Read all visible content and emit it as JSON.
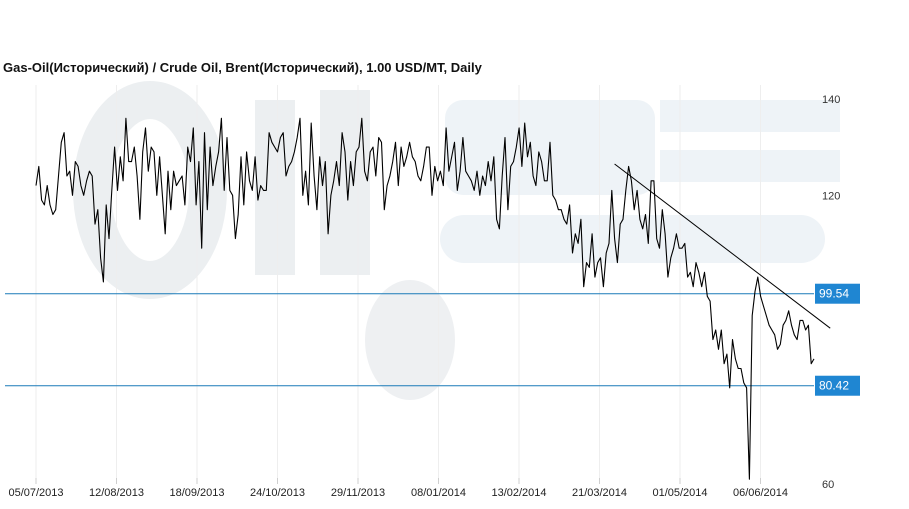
{
  "colors": {
    "series": "#000000",
    "trendline": "#000000",
    "level_line": "#1a7ab8",
    "level_badge": "#1f86d2",
    "grid": "#eeeeee",
    "watermark": "#e8ecef"
  },
  "chart_data": {
    "type": "line",
    "title": "Gas-Oil(Исторический) / Crude Oil, Brent(Исторический), 1.00 USD/MT, Daily",
    "xlabel": "",
    "ylabel": "",
    "ylim": [
      60,
      140
    ],
    "y_ticks": [
      "140",
      "120",
      "60"
    ],
    "x_ticks": [
      "05/07/2013",
      "12/08/2013",
      "18/09/2013",
      "24/10/2013",
      "29/11/2013",
      "08/01/2014",
      "13/02/2014",
      "21/03/2014",
      "01/05/2014",
      "06/06/2014"
    ],
    "grid": "vertical",
    "levels": [
      {
        "label": "99.54",
        "value": 99.54
      },
      {
        "label": "80.42",
        "value": 80.42
      }
    ],
    "trendline": {
      "from": {
        "index": 206,
        "value": 126.5
      },
      "to": {
        "index": 281,
        "value": 93
      }
    },
    "series": [
      {
        "values": [
          122,
          126,
          119,
          118,
          122,
          118,
          116,
          117,
          124,
          131,
          133,
          124,
          125,
          120,
          127,
          126,
          122,
          120,
          123,
          125,
          124,
          114,
          117,
          107,
          102,
          118,
          111,
          121,
          130,
          121,
          128,
          123,
          136,
          127,
          127,
          130,
          124,
          115,
          129,
          134,
          125,
          130,
          129,
          120,
          128,
          120,
          112,
          125,
          117,
          125,
          122,
          123,
          124,
          118,
          130,
          127,
          134,
          118,
          127,
          109,
          133,
          117,
          130,
          122,
          126,
          129,
          136,
          121,
          132,
          121,
          120,
          111,
          116,
          128,
          118,
          129,
          123,
          121,
          128,
          119,
          122,
          121,
          121,
          133,
          131,
          130,
          129,
          132,
          133,
          124,
          126,
          127,
          129,
          132,
          136,
          120,
          125,
          118,
          135,
          124,
          117,
          128,
          122,
          127,
          112,
          120,
          123,
          127,
          122,
          133,
          129,
          119,
          127,
          122,
          129,
          130,
          136,
          125,
          123,
          129,
          130,
          124,
          132,
          131,
          117,
          122,
          124,
          127,
          131,
          122,
          130,
          126,
          128,
          131,
          128,
          127,
          124,
          123,
          126,
          130,
          130,
          120,
          126,
          123,
          125,
          122,
          134,
          125,
          128,
          131,
          121,
          125,
          132,
          125,
          124,
          123,
          121,
          125,
          120,
          124,
          122,
          127,
          123,
          128,
          115,
          113,
          124,
          132,
          117,
          126,
          127,
          130,
          134,
          126,
          135,
          128,
          131,
          124,
          122,
          129,
          127,
          123,
          123,
          131,
          120,
          119,
          117,
          117,
          115,
          114,
          118,
          108,
          112,
          110,
          115,
          101,
          106,
          105,
          112,
          103,
          106,
          107,
          101,
          108,
          110,
          121,
          111,
          106,
          114,
          115,
          121,
          126,
          123,
          117,
          121,
          115,
          113,
          116,
          110,
          123,
          123,
          111,
          109,
          117,
          112,
          103,
          107,
          109,
          112,
          109,
          109,
          110,
          103,
          104,
          101,
          106,
          104,
          101,
          104,
          99,
          98,
          90,
          92,
          88,
          92,
          85,
          87,
          80,
          90,
          86,
          84,
          84,
          81,
          80,
          61,
          95,
          100,
          103,
          99,
          97,
          95,
          93,
          92,
          91,
          88,
          89,
          93,
          94,
          96,
          93,
          91,
          90,
          94,
          94,
          92,
          93,
          85,
          86
        ]
      }
    ]
  }
}
